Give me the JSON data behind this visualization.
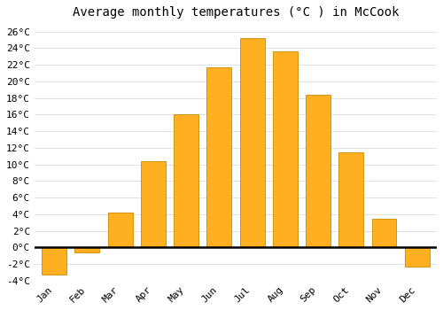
{
  "title": "Average monthly temperatures (°C ) in McCook",
  "months": [
    "Jan",
    "Feb",
    "Mar",
    "Apr",
    "May",
    "Jun",
    "Jul",
    "Aug",
    "Sep",
    "Oct",
    "Nov",
    "Dec"
  ],
  "values": [
    -3.3,
    -0.6,
    4.2,
    10.4,
    16.0,
    21.7,
    25.2,
    23.6,
    18.4,
    11.5,
    3.5,
    -2.3
  ],
  "bar_color": "#FFB020",
  "edge_color": "#CC8800",
  "ylim": [
    -4,
    27
  ],
  "yticks": [
    -4,
    -2,
    0,
    2,
    4,
    6,
    8,
    10,
    12,
    14,
    16,
    18,
    20,
    22,
    24,
    26
  ],
  "background_color": "#FFFFFF",
  "grid_color": "#DDDDDD",
  "title_fontsize": 10,
  "tick_fontsize": 8,
  "zero_line_color": "#000000",
  "bar_width": 0.75,
  "figsize": [
    5.0,
    3.5
  ],
  "dpi": 100
}
